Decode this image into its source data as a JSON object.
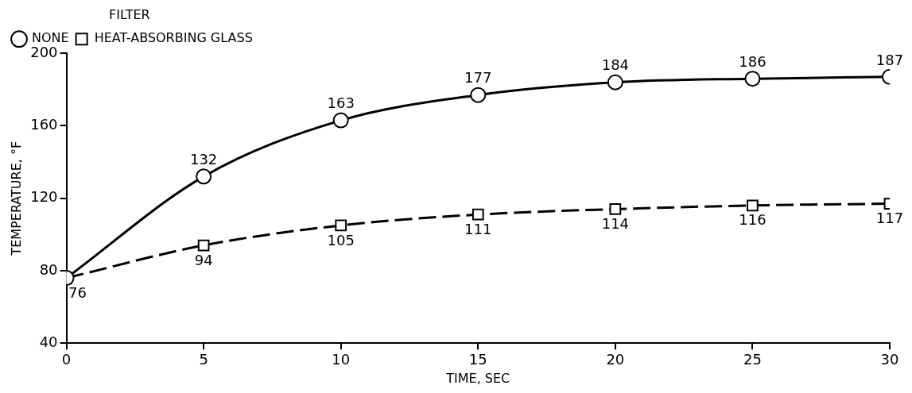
{
  "chart_data": {
    "type": "line",
    "xlabel": "TIME, SEC",
    "ylabel": "TEMPERATURE, °F",
    "legend_title": "FILTER",
    "legend": "top left",
    "x": [
      0,
      5,
      10,
      15,
      20,
      25,
      30
    ],
    "xlim": [
      0,
      30
    ],
    "xticks": [
      0,
      5,
      10,
      15,
      20,
      25,
      30
    ],
    "ylim": [
      40,
      200
    ],
    "yticks": [
      40,
      80,
      120,
      160,
      200
    ],
    "grid": false,
    "series": [
      {
        "name": "NONE",
        "color": "#000000",
        "marker": "circle",
        "line_style": "solid",
        "values": [
          76,
          132,
          163,
          177,
          184,
          186,
          187
        ],
        "value_labels": [
          null,
          "132",
          "163",
          "177",
          "184",
          "186",
          "187"
        ]
      },
      {
        "name": "HEAT-ABSORBING GLASS",
        "color": "#000000",
        "marker": "square",
        "line_style": "dashed",
        "values": [
          76,
          94,
          105,
          111,
          114,
          116,
          117
        ],
        "value_labels": [
          "76",
          "94",
          "105",
          "111",
          "114",
          "116",
          "117"
        ]
      }
    ]
  }
}
